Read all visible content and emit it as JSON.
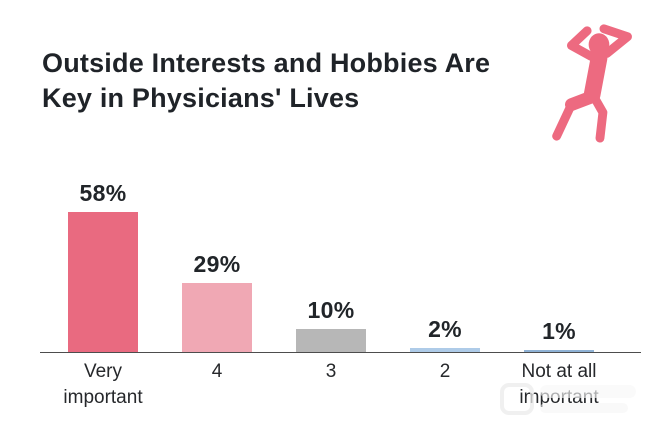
{
  "title": {
    "lines": [
      "Outside Interests and Hobbies Are",
      "Key in Physicians' Lives"
    ],
    "full": "Outside Interests and Hobbies Are Key in Physicians' Lives"
  },
  "chart_data": {
    "type": "bar",
    "title": "Outside Interests and Hobbies Are Key in Physicians' Lives",
    "categories": [
      "Very important",
      "4",
      "3",
      "2",
      "Not at all important"
    ],
    "category_lines": [
      [
        "Very",
        "important"
      ],
      [
        "4"
      ],
      [
        "3"
      ],
      [
        "2"
      ],
      [
        "Not at all",
        "important"
      ]
    ],
    "values": [
      58,
      29,
      10,
      2,
      1
    ],
    "value_labels": [
      "58%",
      "29%",
      "10%",
      "2%",
      "1%"
    ],
    "bar_colors": [
      "#e96a80",
      "#f0a8b4",
      "#b7b7b7",
      "#aecbe8",
      "#8fb2d5"
    ],
    "xlabel": "",
    "ylabel": "",
    "ylim": [
      0,
      60
    ],
    "grid": false,
    "legend": false,
    "unit": "percent"
  },
  "icons": {
    "relaxing_person_color": "#ed6a80"
  },
  "colors": {
    "background": "#ffffff",
    "title_text": "#1f2328",
    "label_text": "#26282b",
    "axis_line": "#4d4d4d"
  }
}
